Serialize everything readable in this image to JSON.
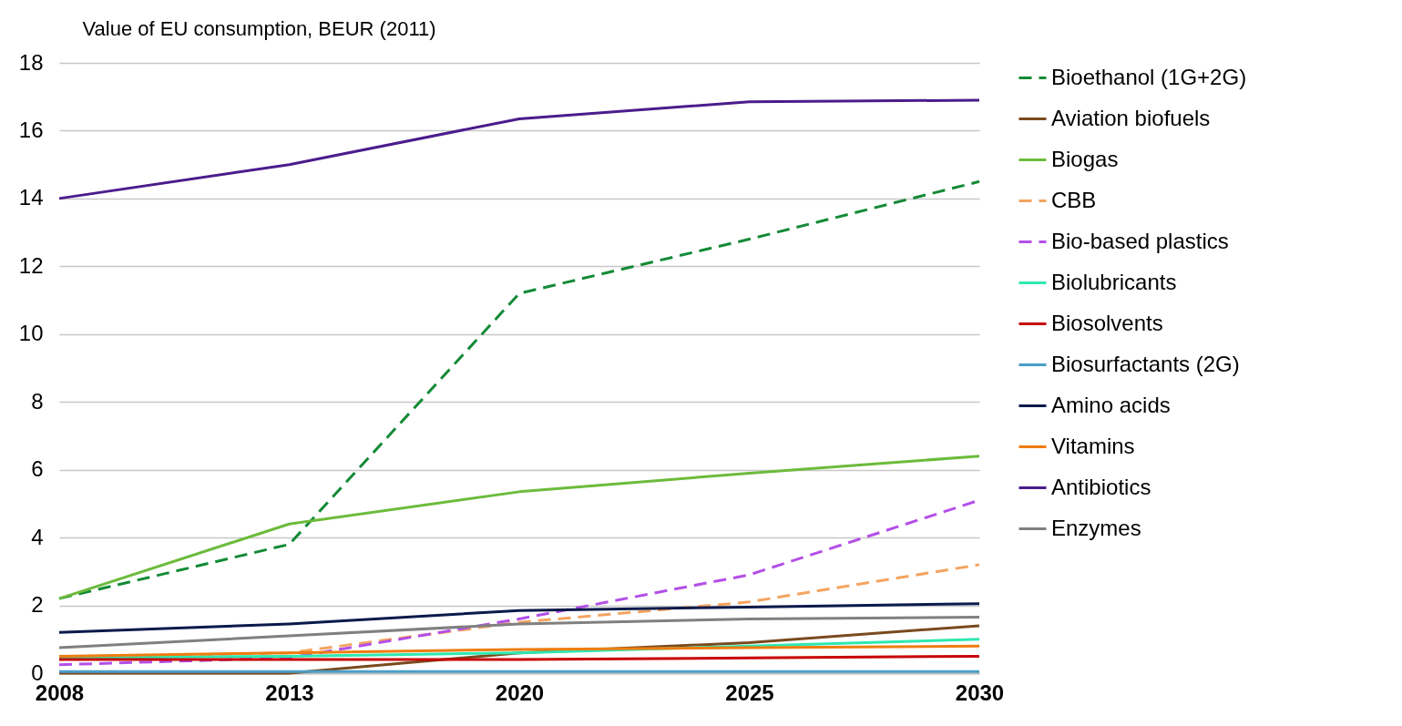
{
  "chart_data": {
    "type": "line",
    "ylabel": "Value of EU consumption, BEUR (2011)",
    "categories": [
      "2008",
      "2013",
      "2020",
      "2025",
      "2030"
    ],
    "ylim": [
      0,
      18
    ],
    "yticks": [
      0,
      2,
      4,
      6,
      8,
      10,
      12,
      14,
      16,
      18
    ],
    "grid": "y",
    "legend": "right",
    "marker": "none",
    "series": [
      {
        "name": "Bioethanol (1G+2G)",
        "color": "#138a36",
        "line_style": "dashed",
        "values": [
          2.2,
          3.8,
          11.2,
          12.8,
          14.5
        ]
      },
      {
        "name": "Aviation biofuels",
        "color": "#7a4a1e",
        "values": [
          0,
          0,
          0.6,
          0.9,
          1.4
        ]
      },
      {
        "name": "Biogas",
        "color": "#6cbb3c",
        "values": [
          2.2,
          4.4,
          5.35,
          5.9,
          6.4
        ]
      },
      {
        "name": "CBB",
        "color": "#f4a460",
        "line_style": "dashed",
        "values": [
          0.45,
          0.6,
          1.5,
          2.1,
          3.2
        ]
      },
      {
        "name": "Bio-based plastics",
        "color": "#b44fe8",
        "line_style": "dashed",
        "values": [
          0.25,
          0.45,
          1.6,
          2.9,
          5.1
        ]
      },
      {
        "name": "Biolubricants",
        "color": "#2ee8b0",
        "values": [
          0.45,
          0.5,
          0.6,
          0.8,
          1.0
        ]
      },
      {
        "name": "Biosolvents",
        "color": "#c80000",
        "values": [
          0.4,
          0.4,
          0.4,
          0.45,
          0.5
        ]
      },
      {
        "name": "Biosurfactants (2G)",
        "color": "#4a9ec8",
        "values": [
          0.05,
          0.05,
          0.05,
          0.05,
          0.05
        ]
      },
      {
        "name": "Amino acids",
        "color": "#0a1a4a",
        "values": [
          1.2,
          1.45,
          1.85,
          1.95,
          2.05
        ]
      },
      {
        "name": "Vitamins",
        "color": "#ee7d10",
        "values": [
          0.5,
          0.6,
          0.7,
          0.75,
          0.8
        ]
      },
      {
        "name": "Antibiotics",
        "color": "#4b1c8c",
        "values": [
          14,
          15,
          16.35,
          16.85,
          16.9
        ]
      },
      {
        "name": "Enzymes",
        "color": "#808080",
        "values": [
          0.75,
          1.1,
          1.45,
          1.6,
          1.65
        ]
      }
    ]
  }
}
